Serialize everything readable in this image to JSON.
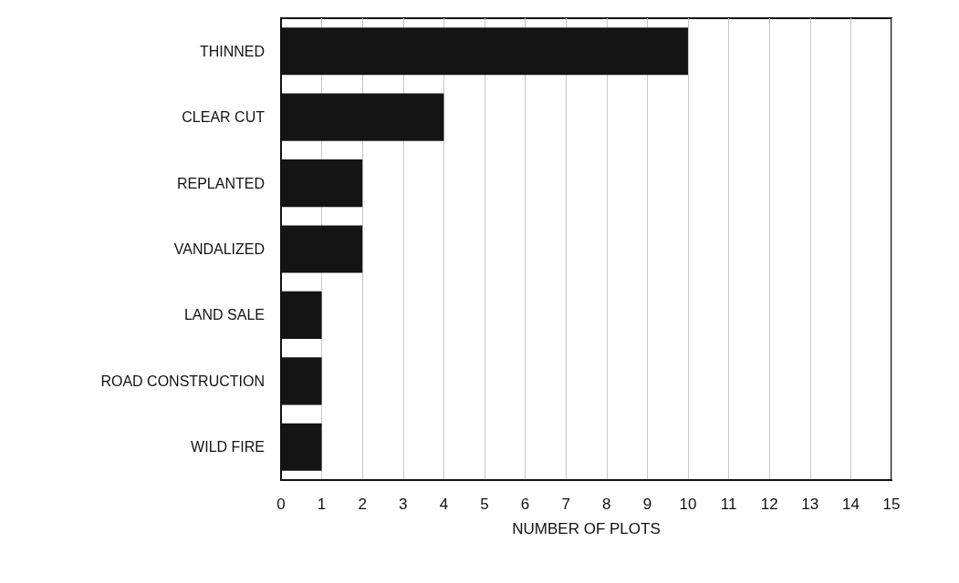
{
  "chart_data": {
    "type": "bar",
    "orientation": "horizontal",
    "xlabel": "NUMBER OF PLOTS",
    "categories": [
      "THINNED",
      "CLEAR CUT",
      "REPLANTED",
      "VANDALIZED",
      "LAND SALE",
      "ROAD CONSTRUCTION",
      "WILD FIRE"
    ],
    "values": [
      10,
      4,
      2,
      2,
      1,
      1,
      1
    ],
    "color": "#141414",
    "xlim": [
      0,
      15
    ],
    "xticks": [
      0,
      1,
      2,
      3,
      4,
      5,
      6,
      7,
      8,
      9,
      10,
      11,
      12,
      13,
      14,
      15
    ],
    "grid": "x"
  }
}
